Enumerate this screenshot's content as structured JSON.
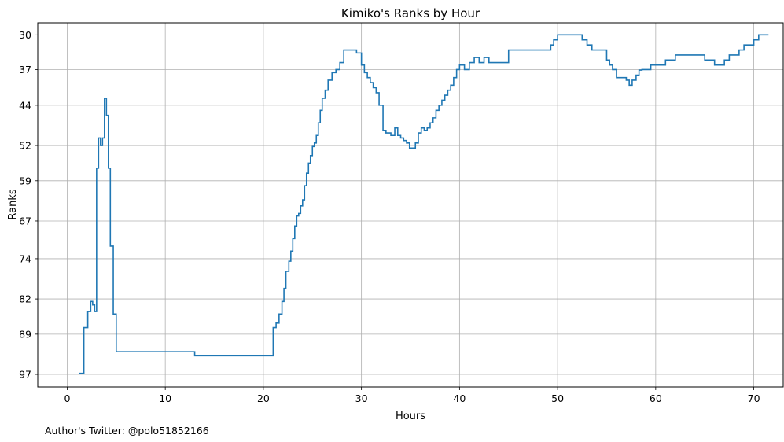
{
  "chart_data": {
    "type": "line",
    "step": true,
    "title": "Kimiko's Ranks by Hour",
    "xlabel": "Hours",
    "ylabel": "Ranks",
    "footnote": "Author's Twitter: @polo51852166",
    "xlim": [
      -3,
      73
    ],
    "ylim": [
      100,
      27.6
    ],
    "y_inverted": true,
    "xticks": [
      0,
      10,
      20,
      30,
      40,
      50,
      60,
      70
    ],
    "yticks": [
      {
        "value": 30.0,
        "label": "30"
      },
      {
        "value": 36.9,
        "label": "37"
      },
      {
        "value": 44.0,
        "label": "44"
      },
      {
        "value": 52.0,
        "label": "52"
      },
      {
        "value": 59.0,
        "label": "59"
      },
      {
        "value": 67.0,
        "label": "67"
      },
      {
        "value": 74.5,
        "label": "74"
      },
      {
        "value": 82.5,
        "label": "82"
      },
      {
        "value": 89.5,
        "label": "89"
      },
      {
        "value": 97.5,
        "label": "97"
      }
    ],
    "grid": true,
    "line_color": "#1f77b4",
    "series": [
      {
        "x": [
          1.2,
          1.7,
          2.1,
          2.4,
          2.6,
          2.8,
          3.0,
          3.2,
          3.4,
          3.6,
          3.8,
          4.0,
          4.2,
          4.4,
          4.7,
          5.0,
          5.3,
          5.5,
          13.0,
          13.3,
          18.0,
          21.0,
          21.3,
          21.6,
          21.9,
          22.1,
          22.3,
          22.6,
          22.8,
          23.0,
          23.2,
          23.4,
          23.6,
          23.8,
          24.0,
          24.2,
          24.4,
          24.6,
          24.8,
          25.0,
          25.2,
          25.4,
          25.6,
          25.8,
          26.0,
          26.3,
          26.6,
          27.0,
          27.4,
          27.8,
          28.2,
          28.6,
          29.0,
          29.5,
          30.0,
          30.3,
          30.6,
          30.9,
          31.2,
          31.5,
          31.8,
          32.2,
          32.5,
          33.0,
          33.4,
          33.7,
          34.0,
          34.3,
          34.6,
          34.9,
          35.2,
          35.5,
          35.8,
          36.1,
          36.4,
          36.7,
          37.0,
          37.3,
          37.6,
          37.9,
          38.2,
          38.5,
          38.8,
          39.1,
          39.4,
          39.7,
          40.0,
          40.5,
          41.0,
          41.5,
          42.0,
          42.5,
          43.0,
          44.0,
          45.0,
          46.0,
          47.0,
          48.0,
          49.0,
          49.3,
          49.6,
          50.0,
          51.0,
          52.0,
          52.5,
          53.0,
          53.5,
          54.0,
          54.5,
          55.0,
          55.3,
          55.6,
          56.0,
          56.5,
          57.0,
          57.3,
          57.6,
          58.0,
          58.3,
          58.6,
          59.0,
          59.5,
          60.0,
          61.0,
          62.0,
          63.0,
          64.0,
          64.5,
          65.0,
          65.5,
          66.0,
          66.5,
          67.0,
          67.5,
          68.0,
          68.5,
          69.0,
          69.5,
          70.0,
          70.5,
          71.5
        ],
        "y": [
          97.3,
          88.2,
          85.0,
          83.0,
          83.7,
          85.0,
          56.5,
          50.5,
          52.0,
          50.5,
          42.6,
          46.0,
          56.5,
          72.0,
          85.5,
          93.0,
          93.0,
          93.0,
          93.8,
          93.8,
          93.8,
          88.2,
          87.3,
          85.5,
          83.0,
          80.4,
          77.0,
          75.0,
          73.0,
          70.5,
          68.0,
          66.0,
          65.5,
          64.0,
          62.8,
          60.0,
          57.5,
          55.5,
          54.0,
          52.2,
          51.5,
          50.0,
          47.5,
          45.0,
          42.6,
          41.0,
          39.0,
          37.5,
          36.9,
          35.5,
          33.0,
          33.0,
          33.0,
          33.6,
          36.0,
          37.5,
          38.5,
          39.5,
          40.5,
          41.5,
          44.0,
          49.0,
          49.5,
          50.0,
          48.5,
          50.0,
          50.5,
          51.0,
          51.5,
          52.5,
          52.5,
          51.5,
          49.5,
          48.5,
          49.0,
          48.5,
          47.5,
          46.5,
          45.0,
          44.0,
          43.0,
          42.0,
          41.0,
          40.0,
          38.5,
          36.9,
          36.0,
          36.9,
          35.5,
          34.5,
          35.5,
          34.5,
          35.5,
          35.5,
          33.0,
          33.0,
          33.0,
          33.0,
          33.0,
          32.0,
          31.0,
          30.0,
          30.0,
          30.0,
          31.0,
          32.0,
          33.0,
          33.0,
          33.0,
          35.0,
          36.0,
          36.9,
          38.5,
          38.5,
          39.0,
          40.0,
          39.0,
          38.0,
          37.0,
          36.9,
          36.9,
          36.0,
          36.0,
          35.0,
          34.0,
          34.0,
          34.0,
          34.0,
          35.0,
          35.0,
          36.0,
          36.0,
          35.0,
          34.0,
          34.0,
          33.0,
          32.0,
          32.0,
          31.0,
          30.0,
          30.0
        ]
      }
    ]
  }
}
